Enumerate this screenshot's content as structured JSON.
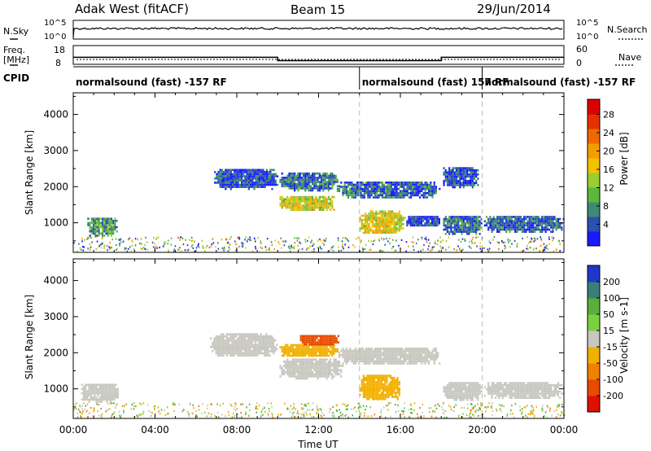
{
  "header": {
    "station": "Adak West (fitACF)",
    "beam": "Beam 15",
    "date": "29/Jun/2014"
  },
  "top_panels": {
    "nsky_label": "N.Sky",
    "nsky_ticks": [
      "10^5",
      "10^0"
    ],
    "nsearch_label": "N.Search",
    "nsearch_ticks": [
      "10^5",
      "10^0"
    ],
    "freq_label_line1": "Freq.",
    "freq_label_line2": "[MHz]",
    "freq_ticks": [
      "18",
      "8"
    ],
    "nave_label": "Nave",
    "nave_ticks": [
      "60",
      "0"
    ],
    "cpid_label": "CPID",
    "cpid_segments": [
      {
        "label": "normalsound (fast) -157 RF",
        "start_hour": 0,
        "end_hour": 14
      },
      {
        "label": "normalsound (fast) 157 RF",
        "start_hour": 14,
        "end_hour": 20
      },
      {
        "label": "normalsound (fast) -157 RF",
        "start_hour": 20,
        "end_hour": 24
      }
    ],
    "freq_steps": [
      {
        "start_hour": 0,
        "end_hour": 10,
        "freq_mhz": 12.2
      },
      {
        "start_hour": 10,
        "end_hour": 18,
        "freq_mhz": 10.4
      },
      {
        "start_hour": 18,
        "end_hour": 24,
        "freq_mhz": 12.2
      }
    ]
  },
  "chart_data": [
    {
      "type": "heatmap",
      "name": "power",
      "ylabel": "Slant Range [km]",
      "xlabel": "Time UT",
      "xlim": [
        0,
        24
      ],
      "ylim": [
        180,
        4600
      ],
      "yticks": [
        1000,
        2000,
        3000,
        4000
      ],
      "xticks": [
        "00:00",
        "04:00",
        "08:00",
        "12:00",
        "16:00",
        "20:00",
        "00:00"
      ],
      "colorbar": {
        "label": "Power [dB]",
        "ticks": [
          "4",
          "8",
          "12",
          "16",
          "20",
          "24",
          "28"
        ],
        "colors": [
          "#1a1aff",
          "#2a50b0",
          "#3f8a72",
          "#5cb83a",
          "#9acd32",
          "#f2c200",
          "#f59d00",
          "#ee6a00",
          "#e63000",
          "#dd0000"
        ]
      },
      "regions": [
        {
          "t0": 0.6,
          "t1": 2.2,
          "r0": 650,
          "r1": 1200,
          "value": 11
        },
        {
          "t0": 6.8,
          "t1": 10.0,
          "r0": 1950,
          "r1": 2550,
          "value": 6
        },
        {
          "t0": 10.0,
          "t1": 12.8,
          "r0": 1350,
          "r1": 1800,
          "value": 17
        },
        {
          "t0": 10.0,
          "t1": 13.0,
          "r0": 1900,
          "r1": 2450,
          "value": 8
        },
        {
          "t0": 12.8,
          "t1": 18.0,
          "r0": 1700,
          "r1": 2200,
          "value": 7
        },
        {
          "t0": 13.9,
          "t1": 16.2,
          "r0": 700,
          "r1": 1400,
          "value": 18
        },
        {
          "t0": 16.2,
          "t1": 18.0,
          "r0": 900,
          "r1": 1250,
          "value": 6
        },
        {
          "t0": 18.0,
          "t1": 20.0,
          "r0": 700,
          "r1": 1250,
          "value": 8
        },
        {
          "t0": 20.0,
          "t1": 24.0,
          "r0": 750,
          "r1": 1250,
          "value": 7
        },
        {
          "t0": 18.0,
          "t1": 19.8,
          "r0": 2000,
          "r1": 2600,
          "value": 6
        }
      ]
    },
    {
      "type": "heatmap",
      "name": "velocity",
      "ylabel": "Slant Range [km]",
      "xlabel": "Time UT",
      "xlim": [
        0,
        24
      ],
      "ylim": [
        180,
        4600
      ],
      "yticks": [
        1000,
        2000,
        3000,
        4000
      ],
      "xticks": [
        "00:00",
        "04:00",
        "08:00",
        "12:00",
        "16:00",
        "20:00",
        "00:00"
      ],
      "colorbar": {
        "label": "Velocity [m s-1]",
        "ticks": [
          "200",
          "100",
          "50",
          "15",
          "-15",
          "-50",
          "-100",
          "-200"
        ],
        "colors": [
          "#2038c8",
          "#3a7e78",
          "#5aae3a",
          "#7bd040",
          "#c8c8c0",
          "#f2b000",
          "#f08000",
          "#e84a00",
          "#e01000"
        ]
      },
      "regions": [
        {
          "t0": 0.3,
          "t1": 2.3,
          "r0": 650,
          "r1": 1200,
          "value": 0
        },
        {
          "t0": 6.6,
          "t1": 10.0,
          "r0": 1900,
          "r1": 2600,
          "value": 0
        },
        {
          "t0": 10.0,
          "t1": 13.2,
          "r0": 1300,
          "r1": 1900,
          "value": 0
        },
        {
          "t0": 10.0,
          "t1": 13.0,
          "r0": 1900,
          "r1": 2300,
          "value": -40
        },
        {
          "t0": 11.0,
          "t1": 13.0,
          "r0": 2200,
          "r1": 2550,
          "value": -150
        },
        {
          "t0": 12.8,
          "t1": 18.0,
          "r0": 1700,
          "r1": 2200,
          "value": 0
        },
        {
          "t0": 13.9,
          "t1": 16.0,
          "r0": 700,
          "r1": 1450,
          "value": -40
        },
        {
          "t0": 18.0,
          "t1": 20.0,
          "r0": 700,
          "r1": 1250,
          "value": 0
        },
        {
          "t0": 20.0,
          "t1": 24.0,
          "r0": 750,
          "r1": 1250,
          "value": 0
        }
      ]
    }
  ]
}
